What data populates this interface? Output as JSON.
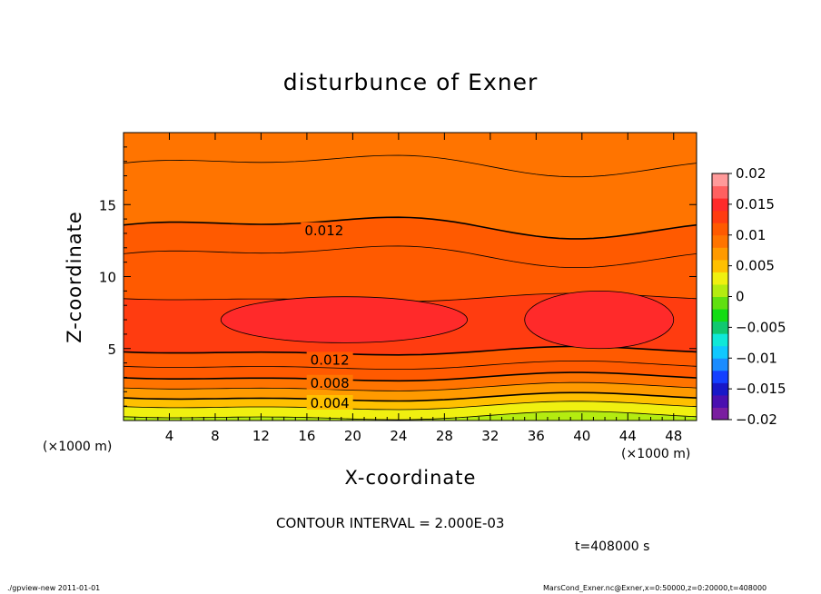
{
  "chart_data": {
    "type": "contour",
    "title": "disturbunce of Exner",
    "xlabel": "X-coordinate",
    "ylabel": "Z-coordinate",
    "x_units": "(×1000 m)",
    "y_units": "(×1000 m)",
    "xlim": [
      0,
      50
    ],
    "ylim": [
      0,
      20
    ],
    "x_ticks": [
      4,
      8,
      12,
      16,
      20,
      24,
      28,
      32,
      36,
      40,
      44,
      48
    ],
    "y_ticks": [
      5,
      10,
      15
    ],
    "contour_interval_text": "CONTOUR INTERVAL = 2.000E-03",
    "time_text": "t=408000 s",
    "contour_labels": [
      {
        "text": "0.012",
        "x": 17.5,
        "y": 13.2
      },
      {
        "text": "0.012",
        "x": 18.0,
        "y": 4.2
      },
      {
        "text": "0.008",
        "x": 18.0,
        "y": 2.6
      },
      {
        "text": "0.004",
        "x": 18.0,
        "y": 1.2
      }
    ],
    "colorbar": {
      "ticks": [
        "0.02",
        "0.015",
        "0.01",
        "0.005",
        "0",
        "−0.005",
        "−0.01",
        "−0.015",
        "−0.02"
      ],
      "range": [
        -0.02,
        0.02
      ],
      "colors": [
        "#7a1ea0",
        "#4a10b0",
        "#1818c8",
        "#1440ff",
        "#1a8cff",
        "#10c8ff",
        "#10e8d8",
        "#10c870",
        "#12dc14",
        "#60e010",
        "#b4ec10",
        "#f0f010",
        "#ffc000",
        "#ff9a00",
        "#ff7400",
        "#ff5a00",
        "#ff3c10",
        "#ff2a2a",
        "#ff6060",
        "#ff9a9a"
      ]
    },
    "fill_bands_by_height": [
      {
        "z_range": [
          0,
          0.3
        ],
        "level": 0.0
      },
      {
        "z_range": [
          0.3,
          1.0
        ],
        "level": 0.003
      },
      {
        "z_range": [
          1.0,
          1.6
        ],
        "level": 0.004
      },
      {
        "z_range": [
          1.6,
          2.3
        ],
        "level": 0.006
      },
      {
        "z_range": [
          2.3,
          3.0
        ],
        "level": 0.008
      },
      {
        "z_range": [
          3.0,
          3.8
        ],
        "level": 0.01
      },
      {
        "z_range": [
          3.8,
          4.8
        ],
        "level": 0.011
      },
      {
        "z_range": [
          4.8,
          8.5
        ],
        "level": 0.013
      },
      {
        "z_range": [
          8.5,
          11.5
        ],
        "level": 0.011
      },
      {
        "z_range": [
          11.5,
          13.5
        ],
        "level": 0.01
      },
      {
        "z_range": [
          13.5,
          17.8
        ],
        "level": 0.009
      },
      {
        "z_range": [
          17.8,
          20
        ],
        "level": 0.008
      }
    ],
    "maxima": [
      {
        "x_range": [
          8.5,
          30
        ],
        "z_range": [
          5.4,
          8.6
        ],
        "level": 0.015
      },
      {
        "x_range": [
          35,
          48
        ],
        "z_range": [
          5.0,
          9.0
        ],
        "level": 0.015
      }
    ]
  },
  "footer": {
    "left": "./gpview-new   2011-01-01",
    "right": "MarsCond_Exner.nc@Exner,x=0:50000,z=0:20000,t=408000"
  }
}
